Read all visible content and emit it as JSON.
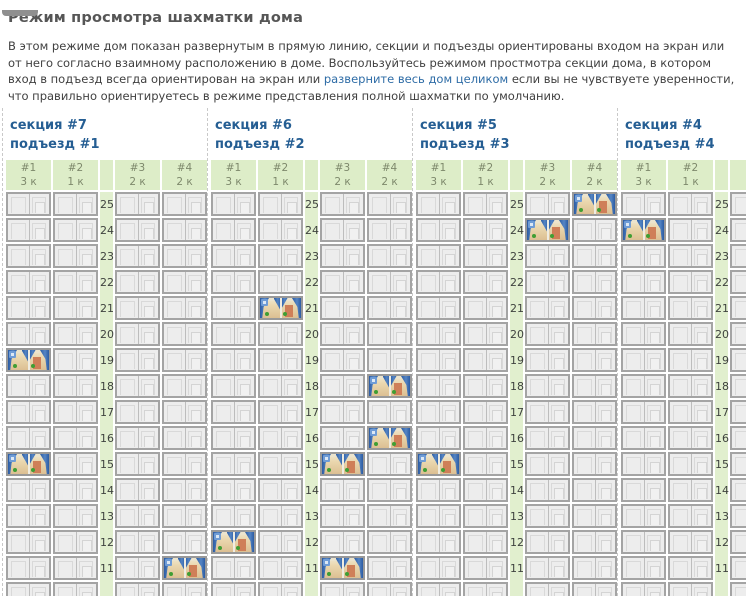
{
  "page_title": "Режим просмотра шахматки дома",
  "intro": {
    "text_before_link": "В этом режиме дом показан развернутым в прямую линию, секции и подъезды ориентированы входом на экран или от него согласно взаимному расположению в доме. Воспользуйтесь режимом простмотра секции дома, в котором вход в подъезд всегда ориентирован на экран или ",
    "link_text": "разверните весь дом целиком",
    "text_after_link": " если вы не чувствуете уверенности, что правильно ориентируетесь в режиме представления полной шахматки по умолчанию."
  },
  "building": {
    "floors": [
      25,
      24,
      23,
      22,
      21,
      20,
      19,
      18,
      17,
      16,
      15,
      14,
      13,
      12,
      11
    ],
    "sections": [
      {
        "section_label": "секция #7",
        "entrance_label": "подъезд #1",
        "columns": [
          {
            "number": "#1",
            "rooms": "3 к"
          },
          {
            "number": "#2",
            "rooms": "1 к"
          },
          {
            "number": "#3",
            "rooms": "2 к"
          },
          {
            "number": "#4",
            "rooms": "2 к"
          }
        ],
        "occupied": [
          {
            "column": 1,
            "floor": 19
          },
          {
            "column": 1,
            "floor": 15
          },
          {
            "column": 4,
            "floor": 11
          }
        ]
      },
      {
        "section_label": "секция #6",
        "entrance_label": "подъезд #2",
        "columns": [
          {
            "number": "#1",
            "rooms": "3 к"
          },
          {
            "number": "#2",
            "rooms": "1 к"
          },
          {
            "number": "#3",
            "rooms": "2 к"
          },
          {
            "number": "#4",
            "rooms": "2 к"
          }
        ],
        "occupied": [
          {
            "column": 2,
            "floor": 21
          },
          {
            "column": 4,
            "floor": 18
          },
          {
            "column": 4,
            "floor": 16
          },
          {
            "column": 3,
            "floor": 15
          },
          {
            "column": 1,
            "floor": 12
          },
          {
            "column": 3,
            "floor": 11
          }
        ]
      },
      {
        "section_label": "секция #5",
        "entrance_label": "подъезд #3",
        "columns": [
          {
            "number": "#1",
            "rooms": "3 к"
          },
          {
            "number": "#2",
            "rooms": "1 к"
          },
          {
            "number": "#3",
            "rooms": "2 к"
          },
          {
            "number": "#4",
            "rooms": "2 к"
          }
        ],
        "occupied": [
          {
            "column": 4,
            "floor": 25
          },
          {
            "column": 3,
            "floor": 24
          },
          {
            "column": 1,
            "floor": 15
          }
        ]
      },
      {
        "section_label": "секция #4",
        "entrance_label": "подъезд #4",
        "columns": [
          {
            "number": "#1",
            "rooms": "3 к"
          },
          {
            "number": "#2",
            "rooms": "1 к"
          }
        ],
        "clipped_extra_column": true,
        "occupied": [
          {
            "column": 1,
            "floor": 24
          }
        ]
      }
    ]
  },
  "colors": {
    "header_green": "#ddedc8",
    "floor_strip_green": "#e1efce",
    "section_title_blue": "#255e93",
    "link_blue": "#2e6ca6",
    "curtain_blue": "#3a6cb0",
    "cell_border_gray": "#a4a4a4"
  }
}
